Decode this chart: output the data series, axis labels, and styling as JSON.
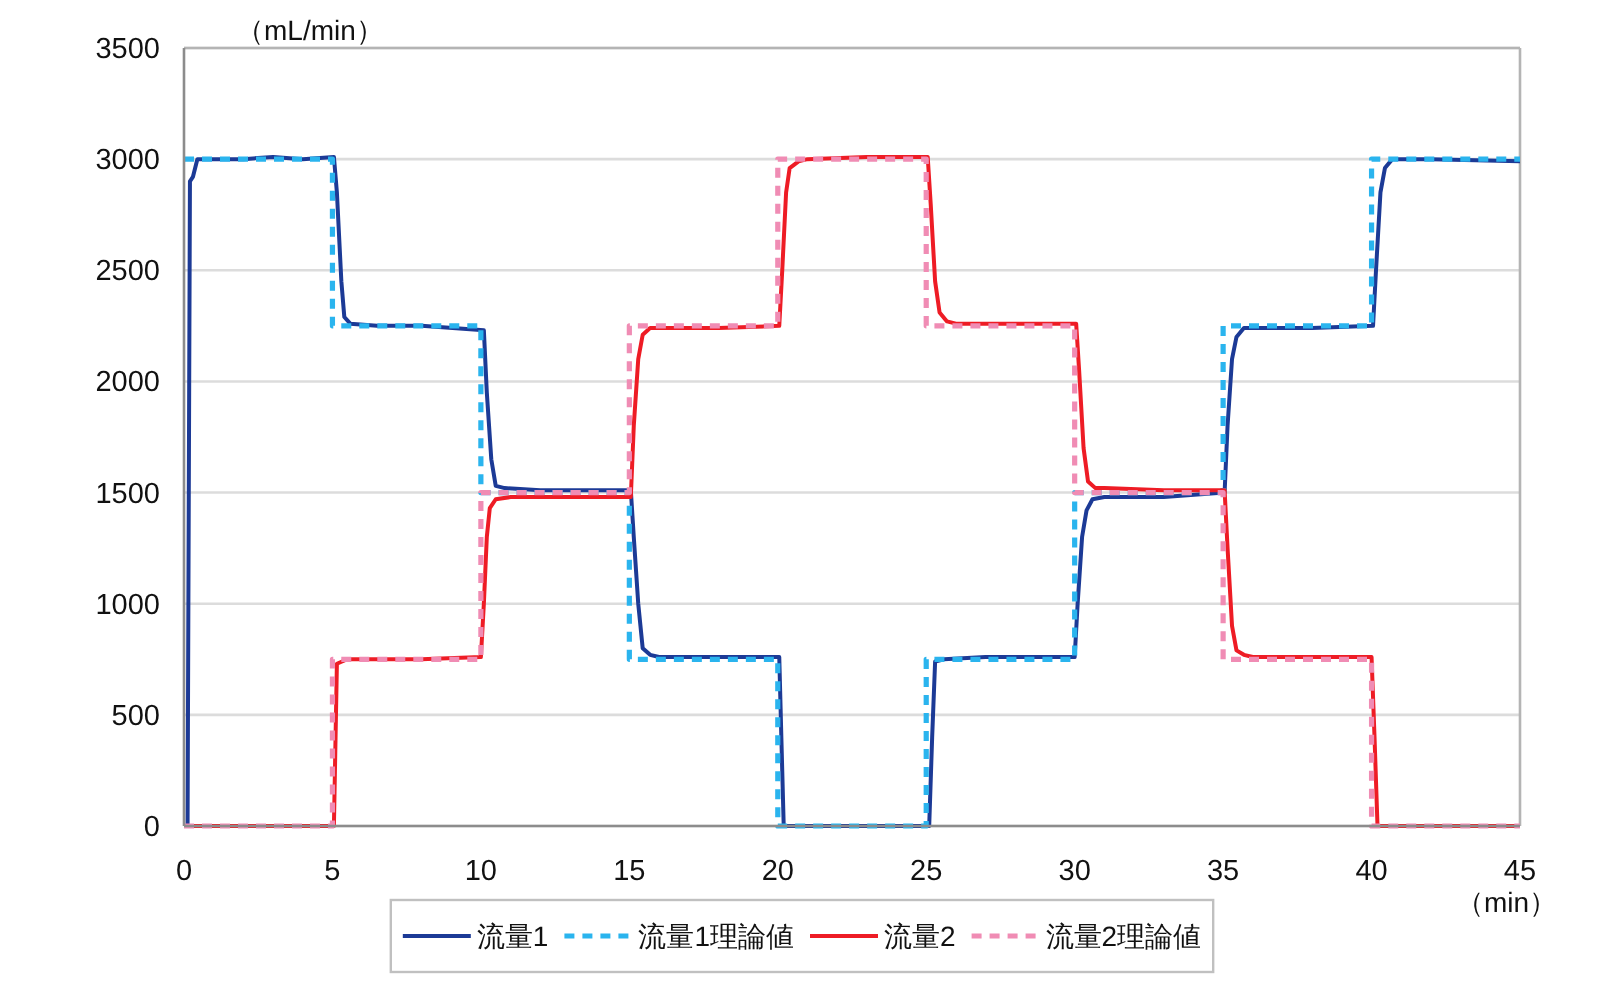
{
  "chart_data": {
    "type": "line",
    "xlabel": "（min）",
    "ylabel": "（mL/min）",
    "xlim": [
      0,
      45
    ],
    "xticks": [
      0,
      5,
      10,
      15,
      20,
      25,
      30,
      35,
      40,
      45
    ],
    "ylim": [
      0,
      3500
    ],
    "yticks": [
      0,
      500,
      1000,
      1500,
      2000,
      2500,
      3000,
      3500
    ],
    "grid": "y",
    "legend": "bottom",
    "series": [
      {
        "name": "流量1",
        "color": "#1c3a96",
        "line_style": "solid",
        "x": [
          0,
          0.12,
          0.2,
          0.3,
          0.45,
          2,
          3,
          4,
          5.05,
          5.15,
          5.3,
          5.4,
          5.6,
          6.5,
          8,
          10.1,
          10.2,
          10.35,
          10.5,
          10.8,
          12,
          15.05,
          15.15,
          15.3,
          15.45,
          15.7,
          16,
          18,
          20.05,
          20.12,
          20.2,
          25.1,
          25.2,
          25.3,
          25.6,
          27,
          30.0,
          30.1,
          30.25,
          30.4,
          30.6,
          31,
          33,
          35.05,
          35.15,
          35.3,
          35.45,
          35.7,
          36,
          38,
          40.05,
          40.15,
          40.3,
          40.45,
          40.7,
          42,
          45
        ],
        "values": [
          0,
          0,
          2900,
          2920,
          3000,
          3000,
          3010,
          3000,
          3010,
          2850,
          2450,
          2290,
          2260,
          2250,
          2250,
          2230,
          1950,
          1650,
          1530,
          1520,
          1510,
          1510,
          1300,
          1000,
          800,
          770,
          760,
          760,
          760,
          400,
          0,
          0,
          400,
          740,
          750,
          760,
          760,
          1000,
          1300,
          1420,
          1470,
          1480,
          1480,
          1500,
          1800,
          2100,
          2200,
          2240,
          2240,
          2240,
          2250,
          2500,
          2850,
          2960,
          3000,
          3000,
          2990
        ]
      },
      {
        "name": "流量1理論値",
        "color": "#2ab4ee",
        "line_style": "dashed",
        "x": [
          0,
          5,
          5,
          10,
          10,
          15,
          15,
          20,
          20,
          25,
          25,
          30,
          30,
          35,
          35,
          40,
          40,
          45
        ],
        "values": [
          3000,
          3000,
          2250,
          2250,
          1500,
          1500,
          750,
          750,
          0,
          0,
          750,
          750,
          1500,
          1500,
          2250,
          2250,
          3000,
          3000
        ]
      },
      {
        "name": "流量2",
        "color": "#ee1c25",
        "line_style": "solid",
        "x": [
          0,
          5.05,
          5.15,
          5.5,
          6,
          8,
          10.0,
          10.1,
          10.2,
          10.3,
          10.5,
          11,
          13,
          15.05,
          15.15,
          15.3,
          15.45,
          15.7,
          18,
          20.05,
          20.15,
          20.28,
          20.4,
          20.7,
          21,
          23,
          25.05,
          25.15,
          25.3,
          25.45,
          25.7,
          26,
          28,
          30.05,
          30.15,
          30.3,
          30.45,
          30.7,
          31,
          33,
          35.05,
          35.15,
          35.3,
          35.45,
          35.7,
          36,
          38,
          40.0,
          40.1,
          40.2,
          45
        ],
        "values": [
          0,
          0,
          730,
          750,
          750,
          750,
          760,
          1000,
          1300,
          1430,
          1470,
          1480,
          1480,
          1480,
          1800,
          2100,
          2210,
          2240,
          2240,
          2250,
          2500,
          2850,
          2960,
          2990,
          3000,
          3010,
          3010,
          2800,
          2450,
          2310,
          2270,
          2260,
          2260,
          2260,
          2050,
          1700,
          1550,
          1520,
          1520,
          1510,
          1510,
          1250,
          900,
          790,
          770,
          760,
          760,
          760,
          400,
          0,
          0
        ]
      },
      {
        "name": "流量2理論値",
        "color": "#f08cb4",
        "line_style": "dashed",
        "x": [
          0,
          5,
          5,
          10,
          10,
          15,
          15,
          20,
          20,
          25,
          25,
          30,
          30,
          35,
          35,
          40,
          40,
          45
        ],
        "values": [
          0,
          0,
          750,
          750,
          1500,
          1500,
          2250,
          2250,
          3000,
          3000,
          2250,
          2250,
          1500,
          1500,
          750,
          750,
          0,
          0
        ]
      }
    ]
  }
}
